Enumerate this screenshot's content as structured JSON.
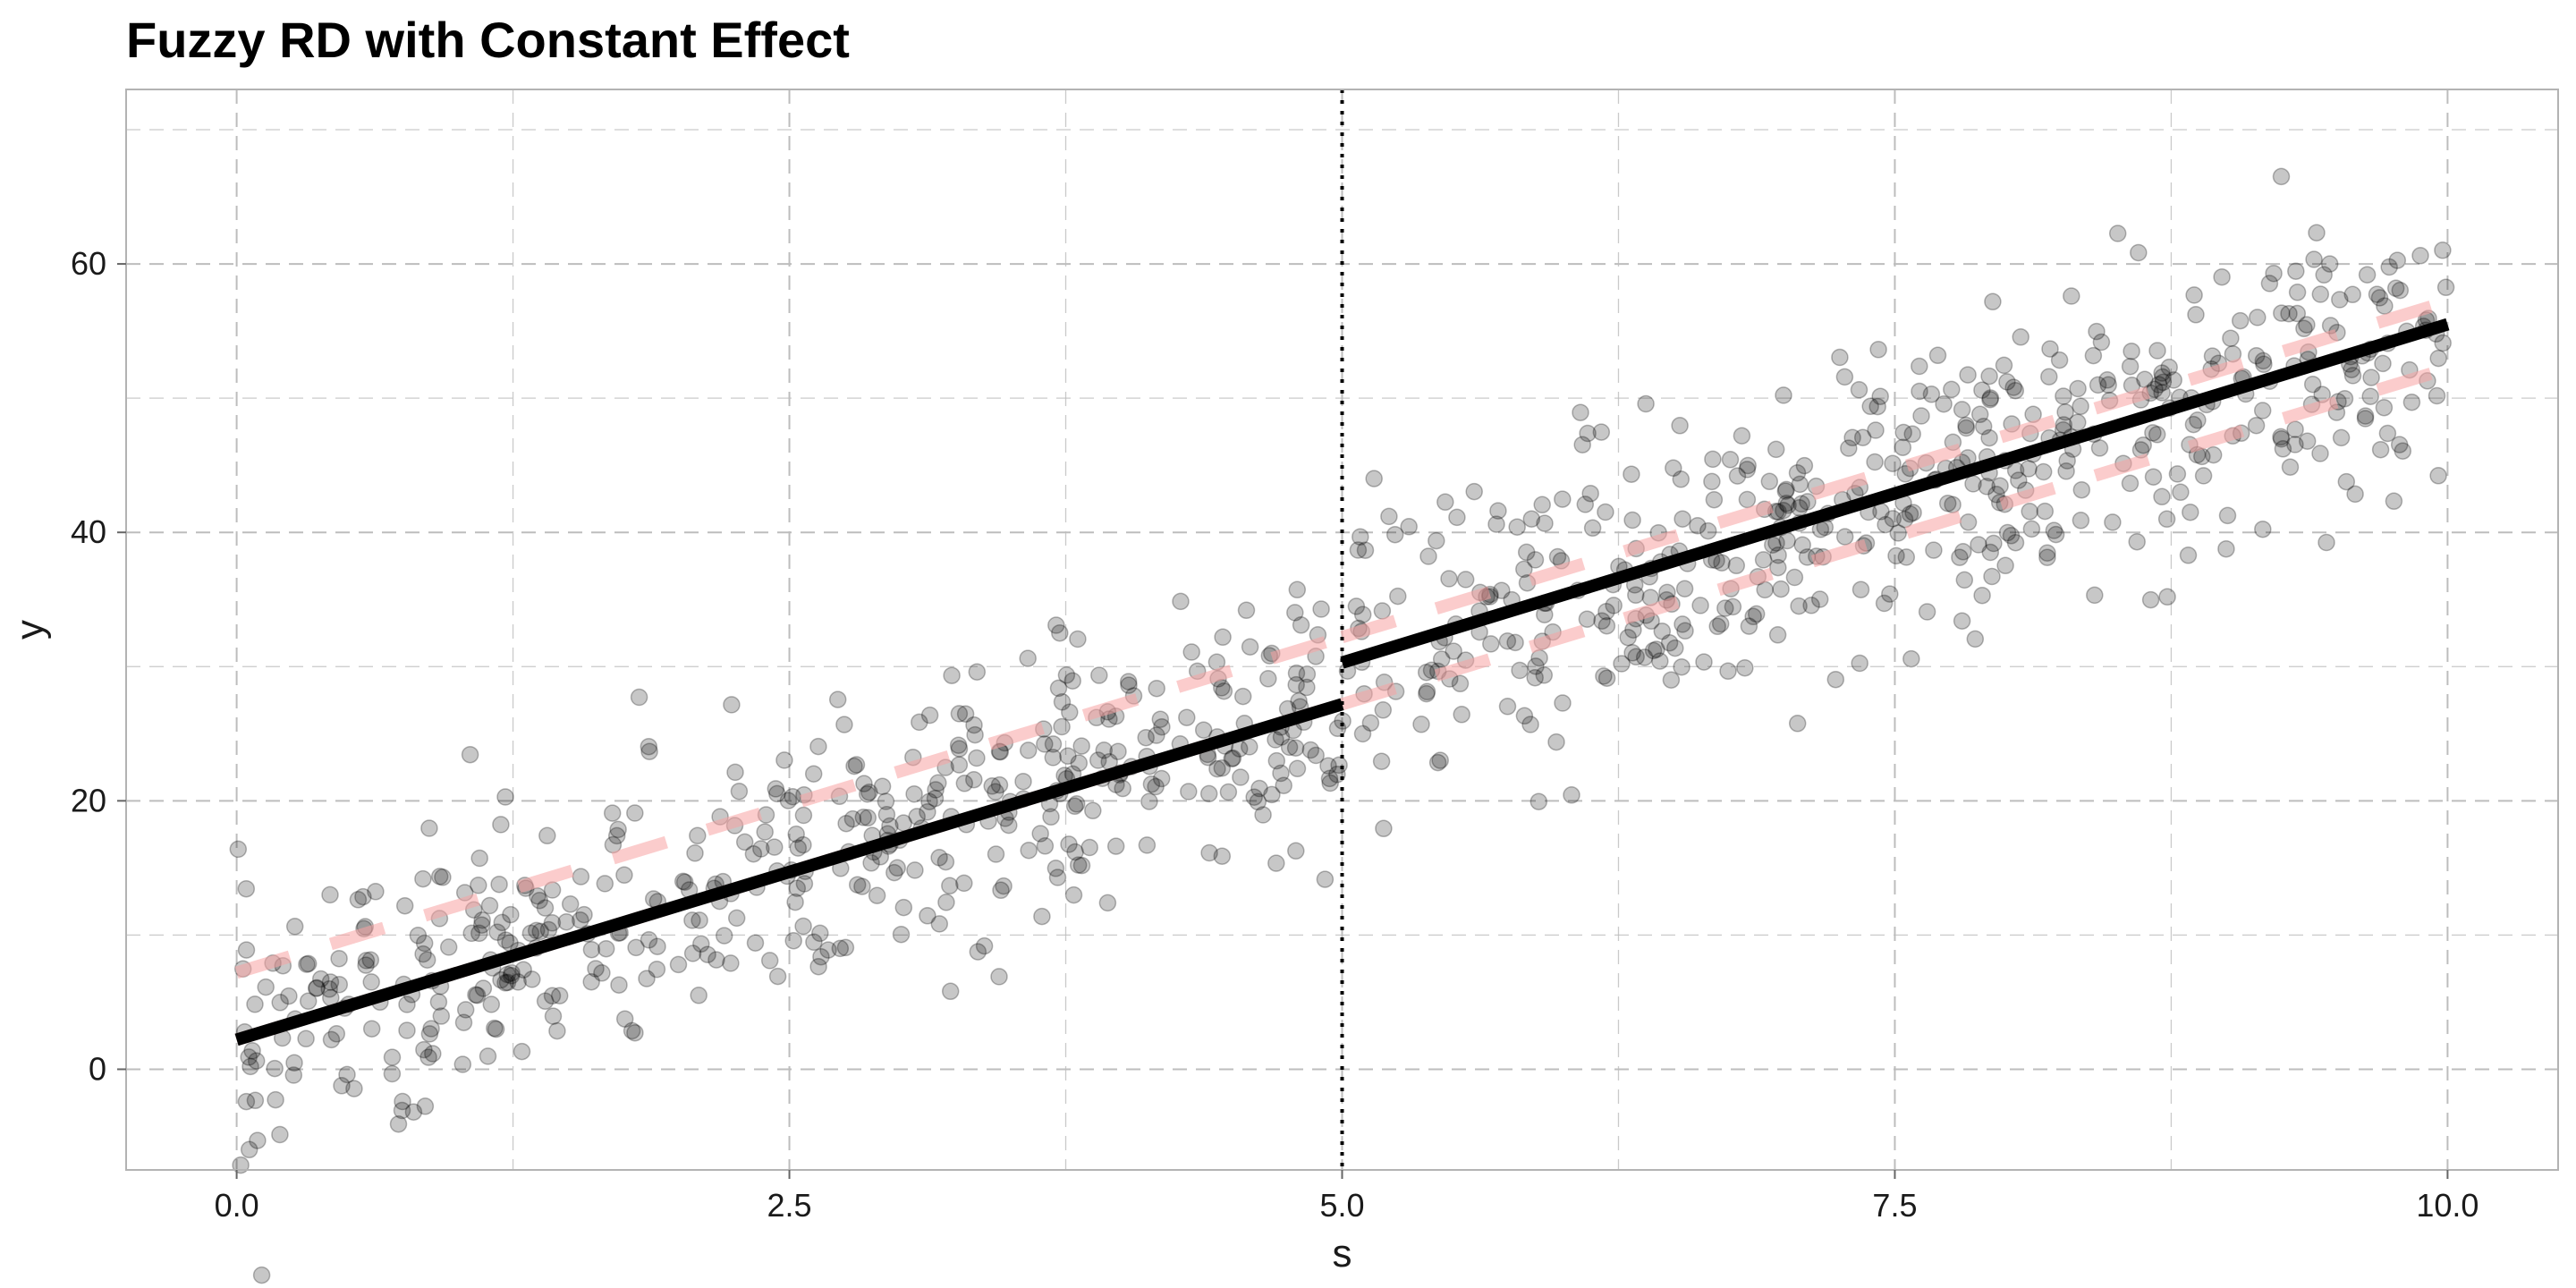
{
  "chart_data": {
    "type": "scatter",
    "title": "Fuzzy RD with Constant Effect",
    "xlabel": "s",
    "ylabel": "y",
    "xlim": [
      -0.5,
      10.5
    ],
    "ylim": [
      -7.5,
      73
    ],
    "x_ticks": [
      0.0,
      2.5,
      5.0,
      7.5,
      10.0
    ],
    "x_tick_labels": [
      "0.0",
      "2.5",
      "5.0",
      "7.5",
      "10.0"
    ],
    "x_minor_ticks": [
      1.25,
      3.75,
      6.25,
      8.75
    ],
    "y_ticks": [
      0,
      20,
      40,
      60
    ],
    "y_tick_labels": [
      "0",
      "20",
      "40",
      "60"
    ],
    "y_minor_ticks": [
      10,
      30,
      50,
      70
    ],
    "grid": true,
    "cutoff": 5.0,
    "fitted_lines": [
      {
        "segment": "left",
        "points": [
          [
            0.0,
            2.2
          ],
          [
            5.0,
            27.2
          ]
        ]
      },
      {
        "segment": "right",
        "points": [
          [
            5.0,
            30.3
          ],
          [
            10.0,
            55.5
          ]
        ]
      }
    ],
    "reference_lines": [
      {
        "segment": "left-upper",
        "points": [
          [
            0.0,
            7.2
          ],
          [
            5.0,
            32.2
          ]
        ]
      },
      {
        "segment": "left-lower",
        "points": [
          [
            0.0,
            2.2
          ],
          [
            5.0,
            27.2
          ]
        ]
      },
      {
        "segment": "right-upper",
        "points": [
          [
            5.0,
            32.2
          ],
          [
            10.0,
            57.2
          ]
        ]
      },
      {
        "segment": "right-lower",
        "points": [
          [
            5.0,
            27.2
          ],
          [
            10.0,
            52.2
          ]
        ]
      }
    ],
    "scatter": {
      "n_points": 1000,
      "description_free": true
    },
    "colors": {
      "points": "#000000",
      "fit_line": "#000000",
      "reference_lines": "#f8a3a3",
      "grid": "#bdbdbd",
      "panel_border": "#b3b3b3"
    }
  }
}
